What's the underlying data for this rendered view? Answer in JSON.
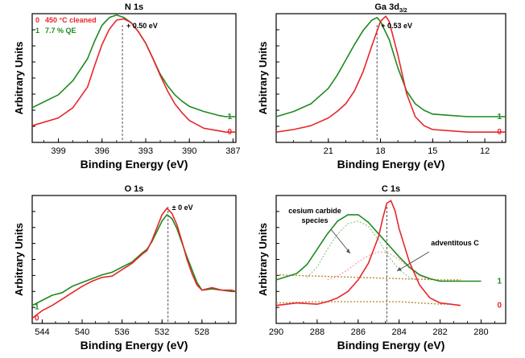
{
  "colors": {
    "red": "#e8262a",
    "green": "#1e8a1e",
    "light_red": "#f4a6a6",
    "light_green": "#8fd08f",
    "fit": "#b8862a"
  },
  "chart_data": [
    {
      "id": "n1s",
      "type": "line",
      "title": "N 1s",
      "xlabel": "Binding Energy (eV)",
      "ylabel": "Arbitrary Units",
      "xlim": [
        400.8,
        386.8
      ],
      "ylim": [
        0,
        1
      ],
      "xticks": [
        399,
        396,
        393,
        390,
        387
      ],
      "shift_label": "+ 0.50 eV",
      "ref_line_x": 394.6,
      "legend": [
        {
          "id": "0",
          "label": "450 °C cleaned",
          "color": "#e8262a"
        },
        {
          "id": "1",
          "label": "7.7 % QE",
          "color": "#1e8a1e"
        }
      ],
      "end_labels": [
        {
          "text": "1",
          "color": "#1e8a1e",
          "y": 0.2
        },
        {
          "text": "0",
          "color": "#e8262a",
          "y": 0.08
        }
      ],
      "series": [
        {
          "name": "1",
          "color": "#1e8a1e",
          "x": [
            400.8,
            399,
            398,
            397,
            396.5,
            396,
            395.5,
            395,
            394.5,
            394,
            393.5,
            393,
            392.5,
            392,
            391.5,
            391,
            390.5,
            390,
            389,
            388,
            387.5,
            386.8
          ],
          "y": [
            0.27,
            0.37,
            0.48,
            0.65,
            0.79,
            0.91,
            0.97,
            0.99,
            0.97,
            0.93,
            0.86,
            0.77,
            0.65,
            0.53,
            0.44,
            0.37,
            0.32,
            0.28,
            0.24,
            0.21,
            0.2,
            0.2
          ]
        },
        {
          "name": "0",
          "color": "#e8262a",
          "x": [
            400.8,
            399,
            398,
            397,
            396.5,
            396,
            395.5,
            395,
            394.5,
            394,
            393.5,
            393,
            392.5,
            392,
            391.5,
            391,
            390.5,
            390,
            389,
            388,
            387.5,
            386.8
          ],
          "y": [
            0.13,
            0.19,
            0.27,
            0.43,
            0.6,
            0.76,
            0.88,
            0.95,
            0.96,
            0.93,
            0.86,
            0.77,
            0.65,
            0.52,
            0.4,
            0.3,
            0.23,
            0.17,
            0.11,
            0.09,
            0.08,
            0.08
          ]
        }
      ]
    },
    {
      "id": "ga3d",
      "type": "line",
      "title": "Ga 3d",
      "title_sub": "3/2",
      "xlabel": "Binding Energy (eV)",
      "ylabel": "Arbitrary Units",
      "xlim": [
        24,
        10.8
      ],
      "ylim": [
        0,
        1
      ],
      "xticks": [
        21,
        18,
        15,
        12
      ],
      "shift_label": "+ 0.53 eV",
      "ref_line_x": 18.2,
      "end_labels": [
        {
          "text": "1",
          "color": "#1e8a1e",
          "y": 0.2
        },
        {
          "text": "0",
          "color": "#e8262a",
          "y": 0.08
        }
      ],
      "series": [
        {
          "name": "1",
          "color": "#1e8a1e",
          "x": [
            24,
            23,
            22,
            21,
            20.5,
            20,
            19.5,
            19,
            18.5,
            18.2,
            18,
            17.5,
            17,
            16.5,
            16,
            15.5,
            15,
            14,
            13,
            12,
            10.8
          ],
          "y": [
            0.2,
            0.24,
            0.3,
            0.42,
            0.52,
            0.64,
            0.76,
            0.87,
            0.95,
            0.97,
            0.94,
            0.8,
            0.58,
            0.4,
            0.3,
            0.25,
            0.22,
            0.21,
            0.2,
            0.2,
            0.2
          ]
        },
        {
          "name": "0",
          "color": "#e8262a",
          "x": [
            24,
            23,
            22,
            21,
            20.5,
            20,
            19.5,
            19,
            18.5,
            18,
            17.7,
            17.5,
            17,
            16.5,
            16,
            15.5,
            15,
            14,
            13,
            12,
            10.8
          ],
          "y": [
            0.08,
            0.1,
            0.13,
            0.19,
            0.24,
            0.3,
            0.4,
            0.55,
            0.75,
            0.94,
            0.98,
            0.94,
            0.68,
            0.38,
            0.2,
            0.13,
            0.1,
            0.09,
            0.08,
            0.08,
            0.08
          ]
        }
      ]
    },
    {
      "id": "o1s",
      "type": "line",
      "title": "O 1s",
      "xlabel": "Binding Energy (eV)",
      "ylabel": "Arbitrary Units",
      "xlim": [
        545,
        524.6
      ],
      "ylim": [
        0,
        1
      ],
      "xticks": [
        544,
        540,
        536,
        532,
        528
      ],
      "shift_label": "± 0 eV",
      "ref_line_x": 531.4,
      "end_labels": [
        {
          "text": "1",
          "color": "#1e8a1e",
          "y": 0.13,
          "side": "left"
        },
        {
          "text": "0",
          "color": "#e8262a",
          "y": 0.04,
          "side": "left"
        }
      ],
      "series": [
        {
          "name": "1",
          "color": "#1e8a1e",
          "x": [
            545,
            544,
            543,
            542,
            541,
            540,
            539,
            538,
            537,
            536,
            535,
            534,
            533.5,
            533,
            532.5,
            532,
            531.5,
            531,
            530.5,
            530,
            529.5,
            529,
            528.5,
            528,
            527,
            526,
            525,
            524.6
          ],
          "y": [
            0.14,
            0.18,
            0.22,
            0.24,
            0.29,
            0.32,
            0.35,
            0.38,
            0.4,
            0.44,
            0.48,
            0.55,
            0.58,
            0.64,
            0.72,
            0.8,
            0.85,
            0.82,
            0.74,
            0.63,
            0.52,
            0.42,
            0.32,
            0.26,
            0.27,
            0.26,
            0.25,
            0.25
          ]
        },
        {
          "name": "0",
          "color": "#e8262a",
          "x": [
            545,
            544,
            543,
            542,
            541,
            540,
            539,
            538,
            537,
            536,
            535,
            534,
            533.5,
            533,
            532.5,
            532,
            531.5,
            531,
            530.5,
            530,
            529.5,
            529,
            528.5,
            528,
            527,
            526,
            525,
            524.6
          ],
          "y": [
            0.04,
            0.1,
            0.14,
            0.19,
            0.24,
            0.29,
            0.33,
            0.36,
            0.37,
            0.42,
            0.47,
            0.54,
            0.57,
            0.65,
            0.75,
            0.85,
            0.9,
            0.86,
            0.77,
            0.64,
            0.5,
            0.39,
            0.3,
            0.26,
            0.28,
            0.26,
            0.26,
            0.25
          ]
        }
      ]
    },
    {
      "id": "c1s",
      "type": "line",
      "title": "C 1s",
      "xlabel": "Binding Energy (eV)",
      "ylabel": "Arbitrary Units",
      "xlim": [
        290,
        278.8
      ],
      "ylim": [
        0,
        1
      ],
      "xticks": [
        290,
        288,
        286,
        284,
        282,
        280
      ],
      "ref_line_x": 284.6,
      "annotations": [
        {
          "text_lines": [
            "cesium carbide",
            "species"
          ],
          "target": "cesium carbide component"
        },
        {
          "text_lines": [
            "adventitous C"
          ],
          "target": "adventitious C component"
        }
      ],
      "end_labels": [
        {
          "text": "1",
          "color": "#1e8a1e",
          "y": 0.33
        },
        {
          "text": "0",
          "color": "#e8262a",
          "y": 0.14
        }
      ],
      "series": [
        {
          "name": "1",
          "color": "#1e8a1e",
          "x": [
            290,
            289,
            288.5,
            288,
            287.5,
            287,
            286.5,
            286,
            285.5,
            285,
            284.5,
            284,
            283.5,
            283,
            282.5,
            282,
            281,
            280
          ],
          "y": [
            0.34,
            0.39,
            0.46,
            0.58,
            0.7,
            0.8,
            0.85,
            0.85,
            0.79,
            0.7,
            0.61,
            0.52,
            0.44,
            0.38,
            0.35,
            0.33,
            0.33,
            0.33
          ]
        },
        {
          "name": "0",
          "color": "#e8262a",
          "x": [
            290,
            289,
            288,
            287.5,
            287,
            286.5,
            286,
            285.5,
            285,
            284.8,
            284.6,
            284.4,
            284.2,
            284,
            283.5,
            283,
            282.5,
            282,
            281.5,
            281
          ],
          "y": [
            0.14,
            0.16,
            0.15,
            0.17,
            0.2,
            0.25,
            0.34,
            0.47,
            0.68,
            0.82,
            0.94,
            0.96,
            0.88,
            0.74,
            0.48,
            0.3,
            0.2,
            0.16,
            0.15,
            0.14
          ]
        },
        {
          "name": "1 fit: cesium carbide",
          "color": "#8fd08f",
          "dashed": true,
          "x": [
            288.5,
            288,
            287.5,
            287,
            286.5,
            286,
            285.5,
            285,
            284.5,
            284,
            283.5,
            283
          ],
          "y": [
            0.36,
            0.44,
            0.58,
            0.7,
            0.78,
            0.8,
            0.76,
            0.65,
            0.52,
            0.42,
            0.36,
            0.33
          ]
        },
        {
          "name": "1 fit: adventitious C",
          "color": "#f4a6a6",
          "dashed": true,
          "x": [
            287.5,
            287,
            286.5,
            286,
            285.5,
            285,
            284.5,
            284,
            283.5,
            283,
            282.5
          ],
          "y": [
            0.34,
            0.37,
            0.42,
            0.48,
            0.53,
            0.56,
            0.55,
            0.5,
            0.43,
            0.37,
            0.34
          ]
        },
        {
          "name": "1 background",
          "color": "#b8862a",
          "dashed": true,
          "x": [
            290,
            288,
            286,
            284,
            282,
            281
          ],
          "y": [
            0.38,
            0.37,
            0.36,
            0.35,
            0.34,
            0.34
          ]
        },
        {
          "name": "0 background",
          "color": "#b8862a",
          "dashed": true,
          "x": [
            290,
            288,
            286,
            285,
            284,
            283,
            282,
            281.5
          ],
          "y": [
            0.16,
            0.17,
            0.17,
            0.17,
            0.17,
            0.16,
            0.15,
            0.15
          ]
        }
      ]
    }
  ]
}
